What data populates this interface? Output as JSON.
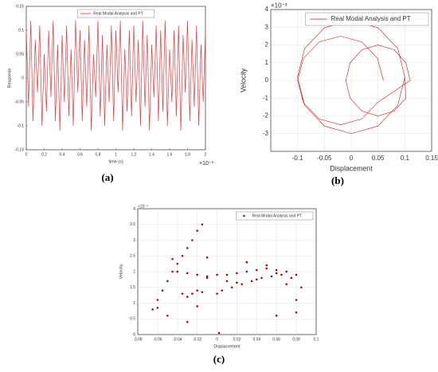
{
  "chart_data": [
    {
      "type": "line",
      "caption": "(a)",
      "xlabel": "time (s)",
      "ylabel": "Response",
      "x_multiplier": "×10⁻³",
      "legend": "upper center",
      "grid": false,
      "xlim": [
        0,
        2
      ],
      "xticks": [
        0,
        0.2,
        0.4,
        0.6,
        0.8,
        1,
        1.2,
        1.4,
        1.6,
        1.8,
        2
      ],
      "ylim": [
        -0.15,
        0.15
      ],
      "yticks": [
        -0.15,
        -0.1,
        -0.05,
        0,
        0.05,
        0.1,
        0.15
      ],
      "x": [
        0,
        0.025,
        0.05,
        0.075,
        0.1,
        0.125,
        0.15,
        0.175,
        0.2,
        0.225,
        0.25,
        0.275,
        0.3,
        0.325,
        0.35,
        0.375,
        0.4,
        0.425,
        0.45,
        0.475,
        0.5,
        0.525,
        0.55,
        0.575,
        0.6,
        0.625,
        0.65,
        0.675,
        0.7,
        0.725,
        0.75,
        0.775,
        0.8,
        0.825,
        0.85,
        0.875,
        0.9,
        0.925,
        0.95,
        0.975,
        1,
        1.025,
        1.05,
        1.075,
        1.1,
        1.125,
        1.15,
        1.175,
        1.2,
        1.225,
        1.25,
        1.275,
        1.3,
        1.325,
        1.35,
        1.375,
        1.4,
        1.425,
        1.45,
        1.475,
        1.5,
        1.525,
        1.55,
        1.575,
        1.6,
        1.625,
        1.65,
        1.675,
        1.7,
        1.725,
        1.75,
        1.775,
        1.8,
        1.825,
        1.85,
        1.875,
        1.9,
        1.925,
        1.95,
        1.975,
        2
      ],
      "series": [
        {
          "name": "Real Modal Analysis and PT",
          "color": "#e8393f",
          "values": [
            0.1,
            -0.06,
            0.12,
            -0.09,
            0.08,
            -0.03,
            0.11,
            -0.1,
            0.05,
            -0.07,
            0.1,
            -0.04,
            0.12,
            -0.09,
            0.07,
            -0.11,
            0.09,
            -0.05,
            0.11,
            -0.08,
            0.06,
            -0.1,
            0.12,
            -0.03,
            0.1,
            -0.09,
            0.08,
            -0.06,
            0.11,
            -0.11,
            0.05,
            -0.04,
            0.12,
            -0.08,
            0.09,
            -0.1,
            0.07,
            -0.05,
            0.11,
            -0.09,
            0.1,
            -0.03,
            0.12,
            -0.11,
            0.06,
            -0.07,
            0.1,
            -0.08,
            0.11,
            -0.05,
            0.08,
            -0.1,
            0.12,
            -0.06,
            0.09,
            -0.11,
            0.07,
            -0.04,
            0.11,
            -0.09,
            0.1,
            -0.07,
            0.12,
            -0.1,
            0.06,
            -0.05,
            0.1,
            -0.08,
            0.11,
            -0.11,
            0.09,
            -0.03,
            0.12,
            -0.09,
            0.08,
            -0.06,
            0.11,
            -0.1,
            0.07,
            -0.05,
            0.1
          ]
        }
      ]
    },
    {
      "type": "line",
      "caption": "(b)",
      "xlabel": "Displacement",
      "ylabel": "Velocity",
      "y_multiplier": "×10⁻³",
      "legend": "upper right",
      "grid": true,
      "xlim": [
        -0.15,
        0.15
      ],
      "xticks": [
        -0.1,
        -0.05,
        0,
        0.05,
        0.1,
        0.15
      ],
      "ylim": [
        -4,
        4
      ],
      "yticks": [
        -3,
        -2,
        -1,
        0,
        1,
        2,
        3,
        4
      ],
      "x": [
        0.06,
        0.049,
        0.02,
        -0.02,
        -0.06,
        -0.089,
        -0.1,
        -0.089,
        -0.06,
        -0.02,
        0.02,
        0.049,
        0.11,
        0.102,
        0.08,
        0.05,
        0.02,
        -0.002,
        -0.01,
        -0.002,
        0.02,
        0.05,
        0.08,
        0.102,
        0.1,
        0.087,
        0.05,
        0,
        -0.05,
        -0.087,
        -0.1,
        -0.087,
        -0.05,
        0,
        0.05,
        0.087,
        0.1
      ],
      "series": [
        {
          "name": "Real Modal Analysis and PT",
          "color": "#d01818",
          "values": [
            0,
            1.25,
            2.17,
            2.5,
            2.17,
            1.25,
            0,
            -1.25,
            -2.17,
            -2.5,
            -2.17,
            -1.25,
            0,
            1,
            1.73,
            2,
            1.73,
            1,
            0,
            -1,
            -1.73,
            -2,
            -1.73,
            -1,
            0.2,
            1.8,
            2.97,
            3.4,
            2.97,
            1.8,
            0.2,
            -1.4,
            -2.57,
            -3.0,
            -2.57,
            -1.4,
            0.2
          ]
        }
      ]
    },
    {
      "type": "scatter",
      "caption": "(c)",
      "xlabel": "Displacement",
      "ylabel": "Velocity",
      "y_multiplier": "×10⁻³",
      "legend": "upper right",
      "grid": true,
      "xlim": [
        -0.08,
        0.1
      ],
      "xticks": [
        -0.08,
        -0.06,
        -0.04,
        -0.02,
        0,
        0.02,
        0.04,
        0.06,
        0.08,
        0.1
      ],
      "ylim": [
        0,
        4
      ],
      "yticks": [
        0,
        0.5,
        1,
        1.5,
        2,
        2.5,
        3,
        3.5,
        4
      ],
      "x": [
        -0.015,
        -0.02,
        -0.025,
        -0.03,
        -0.035,
        -0.04,
        -0.045,
        -0.05,
        -0.055,
        -0.06,
        -0.065,
        -0.04,
        -0.03,
        -0.02,
        -0.01,
        0,
        0.01,
        0.02,
        0.03,
        0.04,
        0.05,
        0.06,
        0.07,
        0.08,
        -0.035,
        -0.025,
        -0.015,
        0.005,
        0.015,
        0.025,
        0.035,
        0.045,
        0.055,
        0.065,
        0.075,
        0.085,
        -0.05,
        -0.03,
        -0.01,
        0.01,
        0.03,
        0.05,
        0.07,
        -0.045,
        -0.02,
        0.0,
        0.02,
        0.04,
        0.06,
        0.08,
        -0.06,
        -0.02,
        0.002,
        0.06,
        0.08,
        -0.03,
        0.03,
        -0.01
      ],
      "series": [
        {
          "name": "Real Modal Analysis and PT",
          "color": "#a01010",
          "values": [
            3.5,
            3.3,
            3.0,
            2.75,
            2.5,
            2.25,
            2.0,
            1.7,
            1.4,
            1.1,
            0.8,
            2.0,
            1.95,
            1.9,
            1.85,
            1.9,
            1.9,
            1.95,
            2.0,
            2.05,
            2.1,
            2.05,
            2.0,
            1.9,
            1.3,
            1.3,
            1.35,
            1.4,
            1.5,
            1.6,
            1.7,
            1.8,
            1.85,
            1.9,
            1.8,
            1.5,
            0.6,
            1.2,
            1.8,
            1.7,
            2.3,
            2.2,
            1.6,
            2.4,
            1.4,
            1.3,
            1.65,
            1.75,
            1.95,
            1.1,
            0.85,
            0.9,
            0.05,
            0.6,
            0.7,
            0.4,
            2.3,
            2.45
          ]
        }
      ]
    }
  ]
}
